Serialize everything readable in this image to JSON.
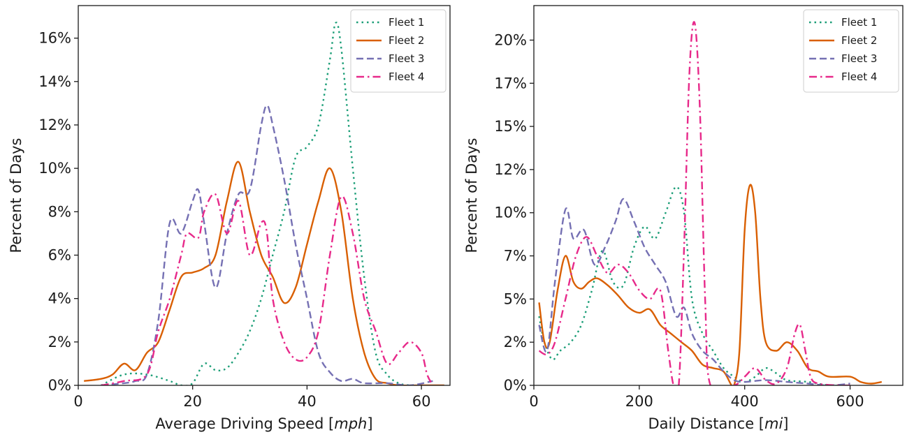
{
  "chart_data": [
    {
      "type": "line",
      "xlabel": "Average Driving Speed [",
      "xlabel_unit": "mph",
      "xlabel_suffix": "]",
      "ylabel": "Percent of Days",
      "xlim": [
        0,
        65
      ],
      "ylim": [
        0,
        17.5
      ],
      "xticks": [
        0,
        20,
        40,
        60
      ],
      "yticks": [
        0,
        2,
        4,
        6,
        8,
        10,
        12,
        14,
        16
      ],
      "ytick_labels": [
        "0%",
        "2%",
        "4%",
        "6%",
        "8%",
        "10%",
        "12%",
        "14%",
        "16%"
      ],
      "legend_position": "top-right",
      "grid": false,
      "series": [
        {
          "name": "Fleet 1",
          "color": "#1b9e77",
          "dash": "dotted",
          "points": [
            [
              4,
              0.0
            ],
            [
              8,
              0.5
            ],
            [
              12,
              0.5
            ],
            [
              16,
              0.2
            ],
            [
              18,
              0
            ],
            [
              20,
              0.1
            ],
            [
              22,
              1.0
            ],
            [
              24,
              0.7
            ],
            [
              26,
              0.8
            ],
            [
              28,
              1.5
            ],
            [
              30,
              2.5
            ],
            [
              32,
              4.0
            ],
            [
              34,
              6.0
            ],
            [
              36,
              8.0
            ],
            [
              38,
              10.5
            ],
            [
              40,
              11.0
            ],
            [
              42,
              12.0
            ],
            [
              44,
              15.0
            ],
            [
              45,
              16.7
            ],
            [
              46,
              15.5
            ],
            [
              48,
              10.0
            ],
            [
              50,
              5.0
            ],
            [
              52,
              1.5
            ],
            [
              54,
              0.5
            ],
            [
              56,
              0.1
            ],
            [
              58,
              0
            ]
          ]
        },
        {
          "name": "Fleet 2",
          "color": "#d95f02",
          "dash": "solid",
          "points": [
            [
              1,
              0.2
            ],
            [
              4,
              0.3
            ],
            [
              6,
              0.5
            ],
            [
              8,
              1.0
            ],
            [
              10,
              0.7
            ],
            [
              12,
              1.5
            ],
            [
              14,
              2.0
            ],
            [
              16,
              3.5
            ],
            [
              18,
              5.0
            ],
            [
              20,
              5.2
            ],
            [
              22,
              5.4
            ],
            [
              24,
              6.0
            ],
            [
              26,
              8.5
            ],
            [
              28,
              10.3
            ],
            [
              30,
              8.0
            ],
            [
              32,
              6.0
            ],
            [
              34,
              5.0
            ],
            [
              36,
              3.8
            ],
            [
              38,
              4.5
            ],
            [
              40,
              6.5
            ],
            [
              42,
              8.5
            ],
            [
              44,
              10.0
            ],
            [
              46,
              8.0
            ],
            [
              48,
              4.0
            ],
            [
              50,
              1.5
            ],
            [
              52,
              0.3
            ],
            [
              54,
              0.1
            ],
            [
              56,
              0
            ],
            [
              60,
              0
            ],
            [
              64,
              0
            ]
          ]
        },
        {
          "name": "Fleet 3",
          "color": "#7570b3",
          "dash": "dashed",
          "points": [
            [
              4,
              0
            ],
            [
              8,
              0.1
            ],
            [
              10,
              0.2
            ],
            [
              12,
              0.5
            ],
            [
              14,
              3.0
            ],
            [
              16,
              7.5
            ],
            [
              18,
              7.0
            ],
            [
              20,
              8.5
            ],
            [
              21,
              9.0
            ],
            [
              22,
              7.5
            ],
            [
              24,
              4.5
            ],
            [
              26,
              7.0
            ],
            [
              28,
              8.8
            ],
            [
              30,
              9.0
            ],
            [
              32,
              12.0
            ],
            [
              33,
              12.9
            ],
            [
              34,
              12.0
            ],
            [
              36,
              9.5
            ],
            [
              38,
              6.5
            ],
            [
              40,
              4.0
            ],
            [
              42,
              1.5
            ],
            [
              44,
              0.6
            ],
            [
              46,
              0.2
            ],
            [
              48,
              0.3
            ],
            [
              50,
              0.1
            ],
            [
              54,
              0.1
            ],
            [
              58,
              0
            ],
            [
              62,
              0.2
            ]
          ]
        },
        {
          "name": "Fleet 4",
          "color": "#e7298a",
          "dash": "dashdot",
          "points": [
            [
              4,
              0
            ],
            [
              8,
              0.2
            ],
            [
              12,
              0.5
            ],
            [
              14,
              2.5
            ],
            [
              16,
              4.0
            ],
            [
              18,
              6.0
            ],
            [
              19,
              7.0
            ],
            [
              21,
              6.8
            ],
            [
              22,
              8.0
            ],
            [
              24,
              8.8
            ],
            [
              26,
              7.0
            ],
            [
              28,
              8.5
            ],
            [
              30,
              6.0
            ],
            [
              32,
              7.5
            ],
            [
              33,
              7.0
            ],
            [
              34,
              4.0
            ],
            [
              36,
              2.0
            ],
            [
              38,
              1.2
            ],
            [
              40,
              1.3
            ],
            [
              42,
              2.5
            ],
            [
              44,
              6.0
            ],
            [
              46,
              8.7
            ],
            [
              48,
              7.0
            ],
            [
              50,
              4.0
            ],
            [
              52,
              2.5
            ],
            [
              54,
              1.0
            ],
            [
              56,
              1.5
            ],
            [
              58,
              2.0
            ],
            [
              60,
              1.5
            ],
            [
              61,
              0.5
            ],
            [
              62,
              0
            ]
          ]
        }
      ]
    },
    {
      "type": "line",
      "xlabel": "Daily Distance [",
      "xlabel_unit": "mi",
      "xlabel_suffix": "]",
      "ylabel": "Percent of Days",
      "xlim": [
        0,
        700
      ],
      "ylim": [
        0,
        22
      ],
      "xticks": [
        0,
        200,
        400,
        600
      ],
      "yticks": [
        0,
        2.5,
        5,
        7.5,
        10,
        12.5,
        15,
        17.5,
        20
      ],
      "ytick_labels": [
        "0%",
        "2%",
        "5%",
        "7%",
        "10%",
        "12%",
        "15%",
        "17%",
        "20%"
      ],
      "legend_position": "top-right",
      "grid": false,
      "series": [
        {
          "name": "Fleet 1",
          "color": "#1b9e77",
          "dash": "dotted",
          "points": [
            [
              10,
              4.0
            ],
            [
              20,
              2.5
            ],
            [
              35,
              1.5
            ],
            [
              50,
              2.0
            ],
            [
              70,
              2.5
            ],
            [
              90,
              3.5
            ],
            [
              110,
              5.5
            ],
            [
              130,
              7.8
            ],
            [
              150,
              6.0
            ],
            [
              170,
              5.8
            ],
            [
              190,
              8.0
            ],
            [
              210,
              9.2
            ],
            [
              230,
              8.5
            ],
            [
              250,
              10.0
            ],
            [
              270,
              11.5
            ],
            [
              285,
              10.0
            ],
            [
              300,
              5.0
            ],
            [
              320,
              3.0
            ],
            [
              340,
              2.0
            ],
            [
              360,
              1.0
            ],
            [
              380,
              0.5
            ],
            [
              400,
              0.2
            ],
            [
              420,
              0.5
            ],
            [
              440,
              1.0
            ],
            [
              460,
              0.7
            ],
            [
              480,
              0.3
            ],
            [
              520,
              0.2
            ],
            [
              560,
              0
            ],
            [
              600,
              0
            ]
          ]
        },
        {
          "name": "Fleet 2",
          "color": "#d95f02",
          "dash": "solid",
          "points": [
            [
              10,
              4.8
            ],
            [
              20,
              2.5
            ],
            [
              30,
              2.5
            ],
            [
              45,
              5.5
            ],
            [
              60,
              7.5
            ],
            [
              75,
              6.0
            ],
            [
              90,
              5.6
            ],
            [
              105,
              6.0
            ],
            [
              120,
              6.2
            ],
            [
              140,
              5.8
            ],
            [
              160,
              5.2
            ],
            [
              180,
              4.5
            ],
            [
              200,
              4.2
            ],
            [
              220,
              4.4
            ],
            [
              240,
              3.5
            ],
            [
              260,
              3.0
            ],
            [
              280,
              2.5
            ],
            [
              300,
              2.0
            ],
            [
              320,
              1.2
            ],
            [
              340,
              1.0
            ],
            [
              360,
              0.8
            ],
            [
              375,
              0
            ],
            [
              380,
              0
            ],
            [
              390,
              2.0
            ],
            [
              400,
              9.0
            ],
            [
              410,
              11.6
            ],
            [
              420,
              10.0
            ],
            [
              430,
              5.0
            ],
            [
              440,
              2.5
            ],
            [
              460,
              2.0
            ],
            [
              480,
              2.5
            ],
            [
              500,
              2.0
            ],
            [
              520,
              1.0
            ],
            [
              540,
              0.8
            ],
            [
              560,
              0.5
            ],
            [
              600,
              0.5
            ],
            [
              620,
              0.2
            ],
            [
              640,
              0.1
            ],
            [
              660,
              0.2
            ]
          ]
        },
        {
          "name": "Fleet 3",
          "color": "#7570b3",
          "dash": "dashed",
          "points": [
            [
              10,
              3.5
            ],
            [
              25,
              2.0
            ],
            [
              40,
              6.0
            ],
            [
              60,
              10.2
            ],
            [
              75,
              8.5
            ],
            [
              95,
              9.0
            ],
            [
              115,
              7.0
            ],
            [
              135,
              8.0
            ],
            [
              155,
              9.5
            ],
            [
              170,
              10.8
            ],
            [
              190,
              9.5
            ],
            [
              210,
              8.0
            ],
            [
              230,
              7.0
            ],
            [
              250,
              6.0
            ],
            [
              270,
              4.0
            ],
            [
              285,
              4.5
            ],
            [
              300,
              3.0
            ],
            [
              320,
              2.0
            ],
            [
              340,
              1.5
            ],
            [
              360,
              0.8
            ],
            [
              380,
              0.3
            ],
            [
              400,
              0.2
            ],
            [
              440,
              0.3
            ],
            [
              480,
              0.2
            ],
            [
              520,
              0.1
            ],
            [
              560,
              0
            ],
            [
              600,
              0.1
            ]
          ]
        },
        {
          "name": "Fleet 4",
          "color": "#e7298a",
          "dash": "dashdot",
          "points": [
            [
              10,
              2.0
            ],
            [
              25,
              1.8
            ],
            [
              40,
              2.5
            ],
            [
              60,
              5.0
            ],
            [
              80,
              7.5
            ],
            [
              100,
              8.6
            ],
            [
              120,
              7.5
            ],
            [
              140,
              6.5
            ],
            [
              160,
              7.0
            ],
            [
              180,
              6.5
            ],
            [
              200,
              5.5
            ],
            [
              220,
              5.0
            ],
            [
              240,
              5.5
            ],
            [
              255,
              2.0
            ],
            [
              265,
              0
            ],
            [
              275,
              0
            ],
            [
              285,
              8.0
            ],
            [
              295,
              18.0
            ],
            [
              305,
              21.0
            ],
            [
              315,
              16.0
            ],
            [
              325,
              5.0
            ],
            [
              335,
              0
            ],
            [
              380,
              0
            ],
            [
              400,
              0.5
            ],
            [
              420,
              1.0
            ],
            [
              440,
              0.3
            ],
            [
              460,
              0.1
            ],
            [
              480,
              1.0
            ],
            [
              495,
              3.0
            ],
            [
              505,
              3.5
            ],
            [
              515,
              2.0
            ],
            [
              525,
              0.5
            ],
            [
              540,
              0.1
            ],
            [
              580,
              0
            ],
            [
              600,
              0
            ]
          ]
        }
      ]
    }
  ]
}
